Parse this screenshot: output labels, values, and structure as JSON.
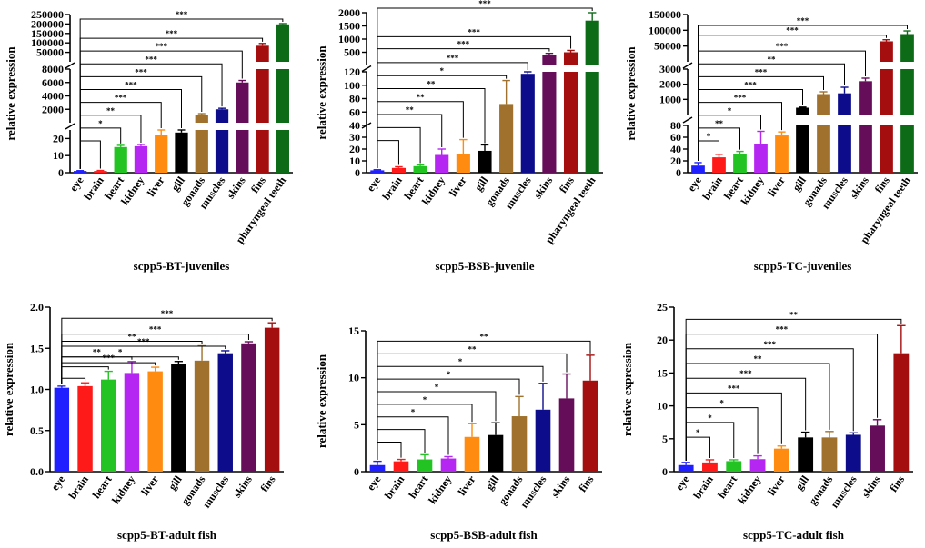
{
  "colors": [
    "#1f1fff",
    "#ff1a1a",
    "#22c322",
    "#b626f2",
    "#ff8c10",
    "#000000",
    "#a0712c",
    "#0d0d8c",
    "#660d5a",
    "#a50e0e",
    "#0d6b18"
  ],
  "chart_data": [
    {
      "type": "bar",
      "title": "scpp5-BT-juveniles",
      "ylabel": "relative expression",
      "categories": [
        "eye",
        "brain",
        "heart",
        "kidney",
        "liver",
        "gill",
        "gonads",
        "muscles",
        "skins",
        "fins",
        "pharyngeal teeth"
      ],
      "values": [
        1,
        1,
        15,
        15.5,
        22,
        23.5,
        1200,
        2000,
        6000,
        85000,
        198000
      ],
      "errors": [
        0.2,
        0.3,
        1,
        1,
        3,
        2,
        150,
        150,
        300,
        12000,
        4000
      ],
      "yticks": [
        0,
        10,
        20,
        2000,
        4000,
        6000,
        8000,
        50000,
        100000,
        150000,
        200000,
        250000
      ],
      "ytick_labels": [
        "0",
        "10",
        "20",
        "2000",
        "4000",
        "6000",
        "8000",
        "50000",
        "100000",
        "150000",
        "200000",
        "250000"
      ],
      "sig": [
        {
          "to": 1,
          "label": ""
        },
        {
          "to": 2,
          "label": "*"
        },
        {
          "to": 3,
          "label": "**"
        },
        {
          "to": 4,
          "label": "***"
        },
        {
          "to": 5,
          "label": "***"
        },
        {
          "to": 6,
          "label": "***"
        },
        {
          "to": 7,
          "label": "***"
        },
        {
          "to": 8,
          "label": "***"
        },
        {
          "to": 9,
          "label": "***"
        },
        {
          "to": 10,
          "label": "***"
        }
      ]
    },
    {
      "type": "bar",
      "title": "scpp5-BSB-juvenile",
      "ylabel": "relative expression",
      "categories": [
        "eye",
        "brain",
        "heart",
        "kidney",
        "liver",
        "gill",
        "gonads",
        "muscles",
        "skins",
        "fins",
        "pharyngeal teeth"
      ],
      "values": [
        2,
        4,
        5.5,
        15,
        16,
        18.5,
        72,
        117,
        400,
        500,
        1700
      ],
      "errors": [
        0.5,
        1,
        1,
        5,
        12,
        5,
        35,
        12,
        60,
        70,
        300
      ],
      "yticks": [
        0,
        10,
        20,
        30,
        40,
        60,
        80,
        100,
        120,
        500,
        1000,
        1500,
        2000
      ],
      "ytick_labels": [
        "0",
        "10",
        "20",
        "30",
        "40",
        "60",
        "80",
        "100",
        "120",
        "500",
        "1000",
        "1500",
        "2000"
      ],
      "sig": [
        {
          "to": 1,
          "label": ""
        },
        {
          "to": 2,
          "label": ""
        },
        {
          "to": 3,
          "label": "**"
        },
        {
          "to": 4,
          "label": "**"
        },
        {
          "to": 5,
          "label": "**"
        },
        {
          "to": 6,
          "label": "*"
        },
        {
          "to": 7,
          "label": "***"
        },
        {
          "to": 8,
          "label": "***"
        },
        {
          "to": 9,
          "label": "***"
        },
        {
          "to": 10,
          "label": "***"
        }
      ]
    },
    {
      "type": "bar",
      "title": "scpp5-TC-juveniles",
      "ylabel": "relative expression",
      "categories": [
        "eye",
        "brain",
        "heart",
        "kidney",
        "liver",
        "gill",
        "gonads",
        "muscles",
        "skins",
        "fins",
        "pharyngeal teeth"
      ],
      "values": [
        12,
        26,
        31,
        48,
        63,
        450,
        1350,
        1400,
        2200,
        65000,
        88000
      ],
      "errors": [
        5,
        5,
        5,
        22,
        6,
        40,
        150,
        400,
        200,
        5000,
        10000
      ],
      "yticks": [
        0,
        20,
        40,
        60,
        80,
        1000,
        2000,
        3000,
        50000,
        100000,
        150000
      ],
      "ytick_labels": [
        "0",
        "20",
        "40",
        "60",
        "80",
        "1000",
        "2000",
        "3000",
        "50000",
        "100000",
        "150000"
      ],
      "sig": [
        {
          "to": 1,
          "label": "*"
        },
        {
          "to": 2,
          "label": "**"
        },
        {
          "to": 3,
          "label": "*"
        },
        {
          "to": 4,
          "label": "***"
        },
        {
          "to": 5,
          "label": "***"
        },
        {
          "to": 6,
          "label": "***"
        },
        {
          "to": 7,
          "label": "**"
        },
        {
          "to": 8,
          "label": "***"
        },
        {
          "to": 9,
          "label": "***"
        },
        {
          "to": 10,
          "label": "***"
        }
      ]
    },
    {
      "type": "bar",
      "title": "scpp5-BT-adult fish",
      "ylabel": "relative expression",
      "categories": [
        "eye",
        "brain",
        "heart",
        "kidney",
        "liver",
        "gill",
        "gonads",
        "muscles",
        "skins",
        "fins"
      ],
      "values": [
        1.02,
        1.04,
        1.12,
        1.2,
        1.22,
        1.31,
        1.35,
        1.44,
        1.56,
        1.75
      ],
      "errors": [
        0.02,
        0.04,
        0.1,
        0.14,
        0.05,
        0.03,
        0.18,
        0.03,
        0.02,
        0.06
      ],
      "yticks": [
        0,
        0.5,
        1.0,
        1.5,
        2.0
      ],
      "ytick_labels": [
        "0.0",
        "0.5",
        "1.0",
        "1.5",
        "2.0"
      ],
      "sig": [
        {
          "to": 1,
          "label": ""
        },
        {
          "to": 2,
          "label": ""
        },
        {
          "to": 3,
          "label": "**"
        },
        {
          "to": 4,
          "label": "***"
        },
        {
          "to": 5,
          "label": "*"
        },
        {
          "to": 6,
          "label": "**"
        },
        {
          "to": 7,
          "label": "***"
        },
        {
          "to": 8,
          "label": "***"
        },
        {
          "to": 9,
          "label": "***"
        }
      ]
    },
    {
      "type": "bar",
      "title": "scpp5-BSB-adult fish",
      "ylabel": "relative expression",
      "categories": [
        "eye",
        "brain",
        "heart",
        "kidney",
        "liver",
        "gill",
        "gonads",
        "muscles",
        "skins",
        "fins"
      ],
      "values": [
        0.7,
        1.1,
        1.3,
        1.4,
        3.7,
        3.9,
        5.9,
        6.6,
        7.8,
        9.7
      ],
      "errors": [
        0.4,
        0.2,
        0.5,
        0.2,
        1.4,
        1.3,
        2.1,
        2.8,
        2.6,
        2.7
      ],
      "yticks": [
        0,
        5,
        10,
        15
      ],
      "ytick_labels": [
        "0",
        "5",
        "10",
        "15"
      ],
      "sig": [
        {
          "to": 1,
          "label": ""
        },
        {
          "to": 2,
          "label": ""
        },
        {
          "to": 3,
          "label": "*"
        },
        {
          "to": 4,
          "label": "*"
        },
        {
          "to": 5,
          "label": "*"
        },
        {
          "to": 6,
          "label": "*"
        },
        {
          "to": 7,
          "label": "*"
        },
        {
          "to": 8,
          "label": "**"
        },
        {
          "to": 9,
          "label": "**"
        }
      ]
    },
    {
      "type": "bar",
      "title": "scpp5-TC-adult fish",
      "ylabel": "relative expression",
      "categories": [
        "eye",
        "brain",
        "heart",
        "kidney",
        "liver",
        "gill",
        "gonads",
        "muscles",
        "skins",
        "fins"
      ],
      "values": [
        1,
        1.4,
        1.6,
        1.9,
        3.5,
        5.2,
        5.2,
        5.6,
        7,
        18
      ],
      "errors": [
        0.4,
        0.4,
        0.2,
        0.5,
        0.4,
        0.8,
        0.9,
        0.3,
        0.9,
        4.2
      ],
      "yticks": [
        0,
        5,
        10,
        15,
        20,
        25
      ],
      "ytick_labels": [
        "0",
        "5",
        "10",
        "15",
        "20",
        "25"
      ],
      "sig": [
        {
          "to": 1,
          "label": "*"
        },
        {
          "to": 2,
          "label": "*"
        },
        {
          "to": 3,
          "label": "*"
        },
        {
          "to": 4,
          "label": "***"
        },
        {
          "to": 5,
          "label": "***"
        },
        {
          "to": 6,
          "label": "**"
        },
        {
          "to": 7,
          "label": "***"
        },
        {
          "to": 8,
          "label": "***"
        },
        {
          "to": 9,
          "label": "**"
        }
      ]
    }
  ]
}
